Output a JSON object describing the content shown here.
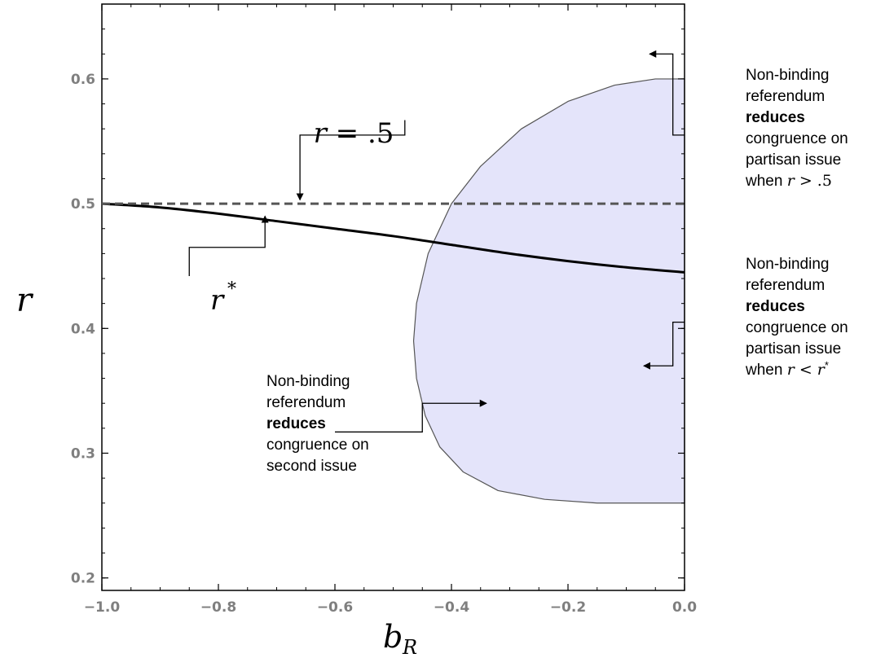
{
  "chart_data": {
    "type": "line",
    "xlabel": "b",
    "xlabel_sub": "R",
    "ylabel": "r",
    "xlim": [
      -1.0,
      0.0
    ],
    "ylim": [
      0.19,
      0.66
    ],
    "x_ticks": [
      -1.0,
      -0.8,
      -0.6,
      -0.4,
      -0.2,
      0.0
    ],
    "x_tick_labels": [
      "−1.0",
      "−0.8",
      "−0.6",
      "−0.4",
      "−0.2",
      "0.0"
    ],
    "y_ticks": [
      0.2,
      0.3,
      0.4,
      0.5,
      0.6
    ],
    "y_tick_labels": [
      "0.2",
      "0.3",
      "0.4",
      "0.5",
      "0.6"
    ],
    "series": [
      {
        "label": "r*",
        "style": "solid",
        "x": [
          -1.0,
          -0.9,
          -0.8,
          -0.7,
          -0.6,
          -0.5,
          -0.4,
          -0.3,
          -0.2,
          -0.1,
          0.0
        ],
        "y": [
          0.5,
          0.497,
          0.492,
          0.486,
          0.48,
          0.474,
          0.467,
          0.46,
          0.454,
          0.449,
          0.445
        ]
      },
      {
        "label": "r = .5",
        "style": "dashed",
        "x": [
          -1.0,
          0.0
        ],
        "y": [
          0.5,
          0.5
        ]
      }
    ],
    "region": {
      "fill": "#e4e4fa",
      "stroke": "#555555",
      "boundary": [
        [
          0.0,
          0.6
        ],
        [
          -0.05,
          0.6
        ],
        [
          -0.12,
          0.595
        ],
        [
          -0.2,
          0.582
        ],
        [
          -0.28,
          0.56
        ],
        [
          -0.35,
          0.53
        ],
        [
          -0.4,
          0.5
        ],
        [
          -0.44,
          0.46
        ],
        [
          -0.46,
          0.42
        ],
        [
          -0.465,
          0.39
        ],
        [
          -0.46,
          0.36
        ],
        [
          -0.445,
          0.33
        ],
        [
          -0.42,
          0.305
        ],
        [
          -0.38,
          0.285
        ],
        [
          -0.32,
          0.27
        ],
        [
          -0.24,
          0.263
        ],
        [
          -0.15,
          0.26
        ],
        [
          -0.05,
          0.26
        ],
        [
          0.0,
          0.26
        ]
      ]
    },
    "annotations": [
      {
        "id": "r_half",
        "text": "r = .5",
        "target": [
          -0.66,
          0.503
        ],
        "path": [
          [
            -0.48,
            0.567
          ],
          [
            -0.48,
            0.555
          ],
          [
            -0.66,
            0.555
          ]
        ]
      },
      {
        "id": "r_star",
        "text": "r",
        "superscript": "*",
        "target": [
          -0.72,
          0.49
        ],
        "path": [
          [
            -0.85,
            0.442
          ],
          [
            -0.85,
            0.465
          ],
          [
            -0.72,
            0.465
          ]
        ]
      },
      {
        "id": "top",
        "lines": [
          [
            {
              "t": "Non-binding"
            }
          ],
          [
            {
              "t": "referendum"
            }
          ],
          [
            {
              "t": "reduces",
              "bold": true
            }
          ],
          [
            {
              "t": "congruence on"
            }
          ],
          [
            {
              "t": "partisan issue"
            }
          ],
          [
            {
              "t": "when "
            },
            {
              "t": "r",
              "math": true
            },
            {
              "t": " > .5",
              "mathup": true
            }
          ]
        ],
        "target": [
          -0.06,
          0.62
        ],
        "path": [
          [
            0.0,
            0.555
          ],
          [
            -0.02,
            0.555
          ],
          [
            -0.02,
            0.62
          ]
        ]
      },
      {
        "id": "right",
        "lines": [
          [
            {
              "t": "Non-binding"
            }
          ],
          [
            {
              "t": "referendum"
            }
          ],
          [
            {
              "t": "reduces",
              "bold": true
            }
          ],
          [
            {
              "t": "congruence on"
            }
          ],
          [
            {
              "t": "partisan issue"
            }
          ],
          [
            {
              "t": "when  "
            },
            {
              "t": "r",
              "math": true
            },
            {
              "t": " < ",
              "mathup": true
            },
            {
              "t": "r",
              "math": true
            },
            {
              "t": "*",
              "sup": true
            }
          ]
        ],
        "target": [
          -0.07,
          0.37
        ],
        "path": [
          [
            0.0,
            0.405
          ],
          [
            -0.02,
            0.405
          ],
          [
            -0.02,
            0.37
          ]
        ]
      },
      {
        "id": "left",
        "lines": [
          [
            {
              "t": "Non-binding"
            }
          ],
          [
            {
              "t": "referendum"
            }
          ],
          [
            {
              "t": "reduces",
              "bold": true
            }
          ],
          [
            {
              "t": "congruence on"
            }
          ],
          [
            {
              "t": "second issue"
            }
          ]
        ],
        "target": [
          -0.34,
          0.34
        ],
        "path": [
          [
            -0.6,
            0.317
          ],
          [
            -0.45,
            0.317
          ],
          [
            -0.45,
            0.34
          ]
        ]
      }
    ]
  }
}
